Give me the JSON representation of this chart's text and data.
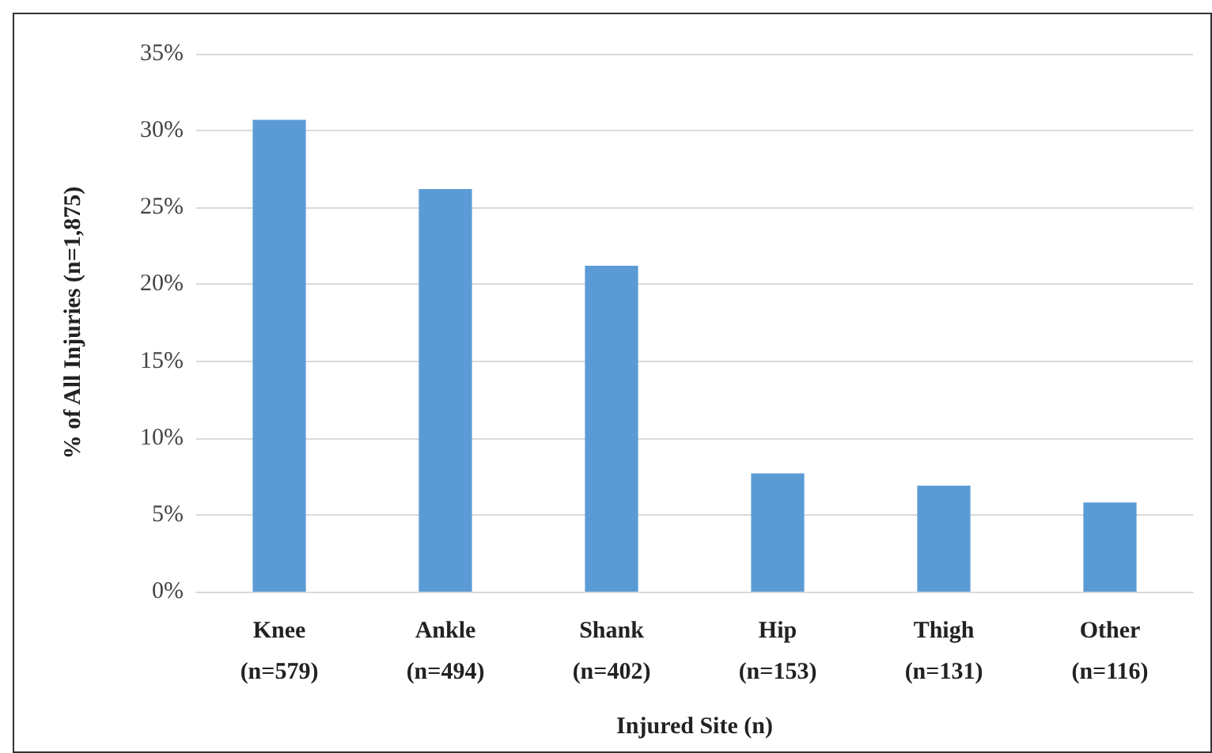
{
  "chart_data": {
    "type": "bar",
    "xlabel": "Injured Site (n)",
    "ylabel": "% of All Injuries (n=1,875)",
    "categories": [
      "Knee\n(n=579)",
      "Ankle\n(n=494)",
      "Shank\n(n=402)",
      "Hip\n(n=153)",
      "Thigh\n(n=131)",
      "Other\n(n=116)"
    ],
    "values": [
      30.7,
      26.2,
      21.2,
      7.7,
      6.9,
      5.8
    ],
    "color": "#5b9bd5",
    "ylim": [
      0,
      35
    ],
    "yticks": [
      {
        "value": 0,
        "label": "0%"
      },
      {
        "value": 5,
        "label": "5%"
      },
      {
        "value": 10,
        "label": "10%"
      },
      {
        "value": 15,
        "label": "15%"
      },
      {
        "value": 20,
        "label": "20%"
      },
      {
        "value": 25,
        "label": "25%"
      },
      {
        "value": 30,
        "label": "30%"
      },
      {
        "value": 35,
        "label": "35%"
      }
    ],
    "grid": "y"
  }
}
